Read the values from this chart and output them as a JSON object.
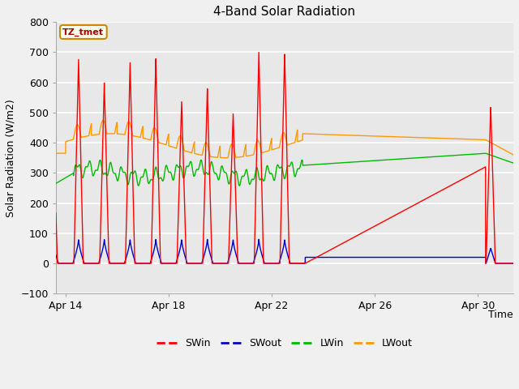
{
  "title": "4-Band Solar Radiation",
  "xlabel": "Time",
  "ylabel": "Solar Radiation (W/m2)",
  "ylim": [
    -100,
    800
  ],
  "yticks": [
    -100,
    0,
    100,
    200,
    300,
    400,
    500,
    600,
    700,
    800
  ],
  "xstart_day": 13.62,
  "xend_day": 31.38,
  "xtick_labels": [
    "Apr 14",
    "Apr 18",
    "Apr 22",
    "Apr 26",
    "Apr 30"
  ],
  "xtick_positions": [
    14,
    18,
    22,
    26,
    30
  ],
  "annotation_box": "TZ_tmet",
  "fig_bg_color": "#f0f0f0",
  "plot_bg_color": "#e8e8e8",
  "grid_color": "#ffffff",
  "series_colors": {
    "SWin": "#ff0000",
    "SWout": "#0000cc",
    "LWin": "#00bb00",
    "LWout": "#ff9900"
  }
}
